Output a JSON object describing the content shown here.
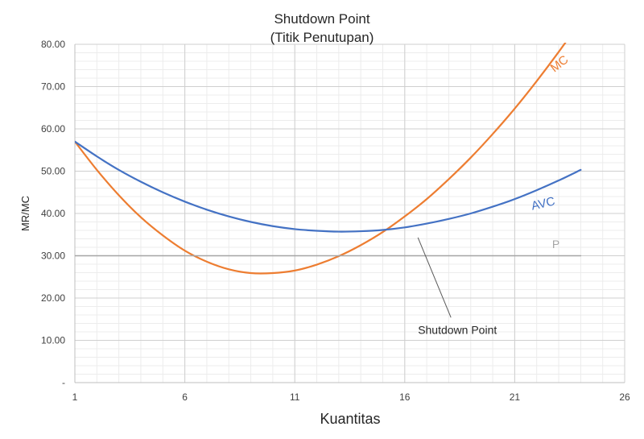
{
  "chart_data": {
    "type": "line",
    "title": "Shutdown Point",
    "subtitle": "(Titik Penutupan)",
    "xlabel": "Kuantitas",
    "ylabel": "MR/MC",
    "xlim": [
      1,
      26
    ],
    "ylim": [
      0,
      80
    ],
    "x_ticks": [
      1,
      6,
      11,
      16,
      21,
      26
    ],
    "x_tick_labels": [
      "1",
      "6",
      "11",
      "16",
      "21",
      "26"
    ],
    "y_ticks": [
      0,
      10,
      20,
      30,
      40,
      50,
      60,
      70,
      80
    ],
    "y_tick_labels": [
      "-",
      "10.00",
      "20.00",
      "30.00",
      "40.00",
      "50.00",
      "60.00",
      "70.00",
      "80.00"
    ],
    "grid": true,
    "series": [
      {
        "name": "MC",
        "color": "#ED7D31",
        "x": [
          1,
          2,
          3,
          4,
          5,
          6,
          7,
          8,
          9,
          10,
          11,
          12,
          13,
          14,
          15,
          16,
          17,
          18,
          19,
          20,
          21,
          22,
          23,
          24
        ],
        "values": [
          57,
          50.3,
          44.3,
          39.1,
          34.8,
          31.2,
          28.6,
          26.8,
          25.9,
          25.9,
          26.5,
          27.9,
          29.9,
          32.5,
          35.6,
          39.3,
          43.4,
          48.1,
          53.2,
          58.8,
          64.8,
          71.3,
          78.2,
          85.5
        ]
      },
      {
        "name": "AVC",
        "color": "#4472C4",
        "x": [
          1,
          2,
          3,
          4,
          5,
          6,
          7,
          8,
          9,
          10,
          11,
          12,
          13,
          14,
          15,
          16,
          17,
          18,
          19,
          20,
          21,
          22,
          23,
          24
        ],
        "values": [
          57,
          53.5,
          50.3,
          47.5,
          45,
          42.8,
          40.9,
          39.3,
          38,
          37,
          36.3,
          35.9,
          35.7,
          35.8,
          36.1,
          36.7,
          37.6,
          38.7,
          40,
          41.6,
          43.4,
          45.5,
          47.8,
          50.3
        ]
      },
      {
        "name": "P",
        "color": "#A5A5A5",
        "x": [
          1,
          24
        ],
        "values": [
          30,
          30
        ]
      }
    ],
    "annotations": [
      {
        "text": "Shutdown Point",
        "x": 16.6,
        "y": 34.3
      }
    ]
  }
}
